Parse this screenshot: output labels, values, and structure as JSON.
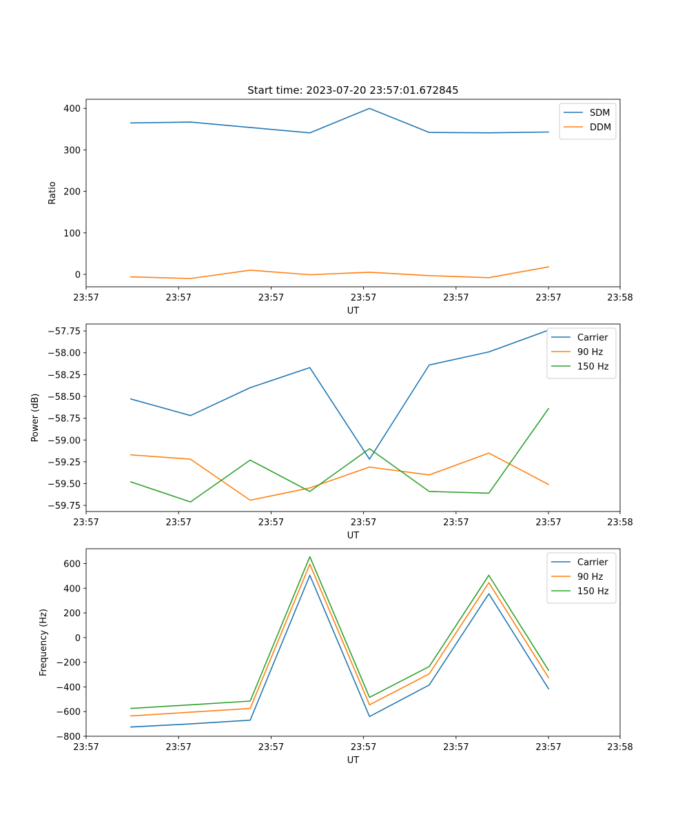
{
  "chart_data": [
    {
      "type": "line",
      "title": "Start time: 2023-07-20 23:57:01.672845",
      "xlabel": "UT",
      "ylabel": "Ratio",
      "x": [
        1,
        2,
        3,
        4,
        5,
        6,
        7,
        8
      ],
      "xlim": [
        0.25,
        9.2
      ],
      "xticks": [
        0.25,
        1.8,
        3.35,
        4.9,
        6.45,
        8.0,
        9.2
      ],
      "xtick_labels": [
        "23:57",
        "23:57",
        "23:57",
        "23:57",
        "23:57",
        "23:57",
        "23:58"
      ],
      "ylim": [
        -30,
        422
      ],
      "yticks": [
        0,
        100,
        200,
        300,
        400
      ],
      "ytick_labels": [
        "0",
        "100",
        "200",
        "300",
        "400"
      ],
      "legend_position": "top-right",
      "series": [
        {
          "name": "SDM",
          "color": "#1f77b4",
          "values": [
            365,
            367,
            354,
            341,
            400,
            342,
            341,
            343
          ]
        },
        {
          "name": "DDM",
          "color": "#ff7f0e",
          "values": [
            -6,
            -10,
            10,
            -1,
            5,
            -3,
            -8,
            18
          ]
        }
      ]
    },
    {
      "type": "line",
      "title": "",
      "xlabel": "UT",
      "ylabel": "Power (dB)",
      "x": [
        1,
        2,
        3,
        4,
        5,
        6,
        7,
        8
      ],
      "xlim": [
        0.25,
        9.2
      ],
      "xticks": [
        0.25,
        1.8,
        3.35,
        4.9,
        6.45,
        8.0,
        9.2
      ],
      "xtick_labels": [
        "23:57",
        "23:57",
        "23:57",
        "23:57",
        "23:57",
        "23:57",
        "23:58"
      ],
      "ylim": [
        -59.82,
        -57.67
      ],
      "yticks": [
        -57.75,
        -58.0,
        -58.25,
        -58.5,
        -58.75,
        -59.0,
        -59.25,
        -59.5,
        -59.75
      ],
      "ytick_labels": [
        "−57.75",
        "−58.00",
        "−58.25",
        "−58.50",
        "−58.75",
        "−59.00",
        "−59.25",
        "−59.50",
        "−59.75"
      ],
      "legend_position": "top-right",
      "series": [
        {
          "name": "Carrier",
          "color": "#1f77b4",
          "values": [
            -58.53,
            -58.72,
            -58.4,
            -58.17,
            -59.22,
            -58.14,
            -57.99,
            -57.74
          ]
        },
        {
          "name": "90 Hz",
          "color": "#ff7f0e",
          "values": [
            -59.17,
            -59.22,
            -59.69,
            -59.55,
            -59.31,
            -59.4,
            -59.15,
            -59.51
          ]
        },
        {
          "name": "150 Hz",
          "color": "#2ca02c",
          "values": [
            -59.48,
            -59.71,
            -59.23,
            -59.59,
            -59.1,
            -59.59,
            -59.61,
            -58.64
          ]
        }
      ]
    },
    {
      "type": "line",
      "title": "",
      "xlabel": "UT",
      "ylabel": "Frequency (Hz)",
      "x": [
        1,
        2,
        3,
        4,
        5,
        6,
        7,
        8
      ],
      "xlim": [
        0.25,
        9.2
      ],
      "xticks": [
        0.25,
        1.8,
        3.35,
        4.9,
        6.45,
        8.0,
        9.2
      ],
      "xtick_labels": [
        "23:57",
        "23:57",
        "23:57",
        "23:57",
        "23:57",
        "23:57",
        "23:58"
      ],
      "ylim": [
        -800,
        720
      ],
      "yticks": [
        600,
        400,
        200,
        0,
        -200,
        -400,
        -600,
        -800
      ],
      "ytick_labels": [
        "600",
        "400",
        "200",
        "0",
        "−200",
        "−400",
        "−600",
        "−800"
      ],
      "legend_position": "top-right",
      "series": [
        {
          "name": "Carrier",
          "color": "#1f77b4",
          "values": [
            -725,
            -700,
            -670,
            505,
            -640,
            -385,
            355,
            -415
          ]
        },
        {
          "name": "90 Hz",
          "color": "#ff7f0e",
          "values": [
            -635,
            -605,
            -575,
            595,
            -545,
            -295,
            445,
            -325
          ]
        },
        {
          "name": "150 Hz",
          "color": "#2ca02c",
          "values": [
            -575,
            -545,
            -515,
            655,
            -485,
            -235,
            505,
            -265
          ]
        }
      ]
    }
  ]
}
